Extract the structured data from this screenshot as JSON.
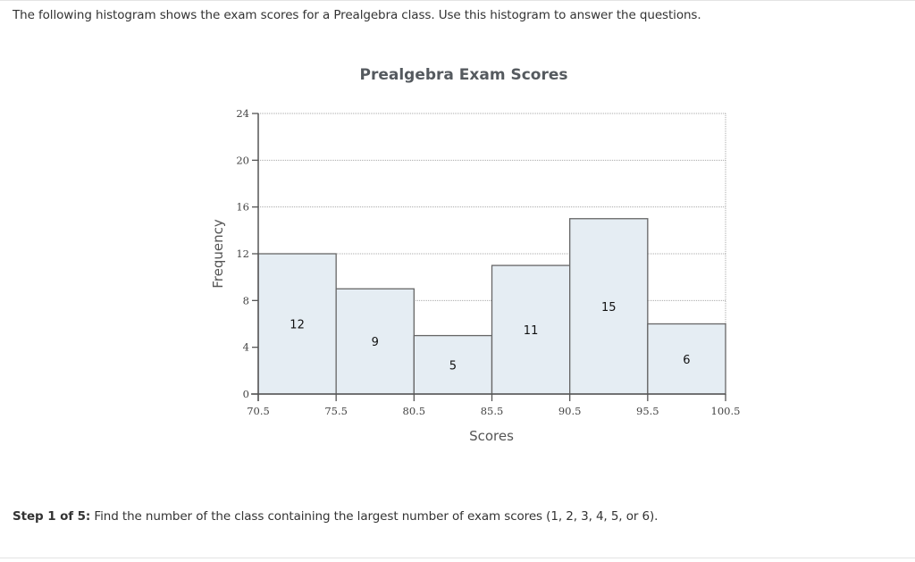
{
  "header": {
    "intro_text": "The following histogram shows the exam scores for a Prealgebra class. Use this histogram to answer the questions."
  },
  "question": {
    "step_label": "Step 1 of 5:",
    "text": " Find the number of the class containing the largest number of exam scores (1, 2, 3, 4, 5, or 6)."
  },
  "colors": {
    "bar_fill": "#e5edf3",
    "bar_stroke": "#666666",
    "grid": "#aaaaaa",
    "title": "#555a5f"
  },
  "chart_data": {
    "type": "bar",
    "title": "Prealgebra Exam Scores",
    "xlabel": "Scores",
    "ylabel": "Frequency",
    "bin_edges": [
      70.5,
      75.5,
      80.5,
      85.5,
      90.5,
      95.5,
      100.5
    ],
    "x_tick_labels": [
      "70.5",
      "75.5",
      "80.5",
      "85.5",
      "90.5",
      "95.5",
      "100.5"
    ],
    "categories": [
      "70.5-75.5",
      "75.5-80.5",
      "80.5-85.5",
      "85.5-90.5",
      "90.5-95.5",
      "95.5-100.5"
    ],
    "values": [
      12,
      9,
      5,
      11,
      15,
      6
    ],
    "bar_labels": [
      "12",
      "9",
      "5",
      "11",
      "15",
      "6"
    ],
    "y_ticks": [
      0,
      4,
      8,
      12,
      16,
      20,
      24
    ],
    "y_tick_labels": [
      "0",
      "4",
      "8",
      "12",
      "16",
      "20",
      "24"
    ],
    "ylim": [
      0,
      24
    ],
    "grid": "horizontal dotted",
    "legend": "none"
  }
}
